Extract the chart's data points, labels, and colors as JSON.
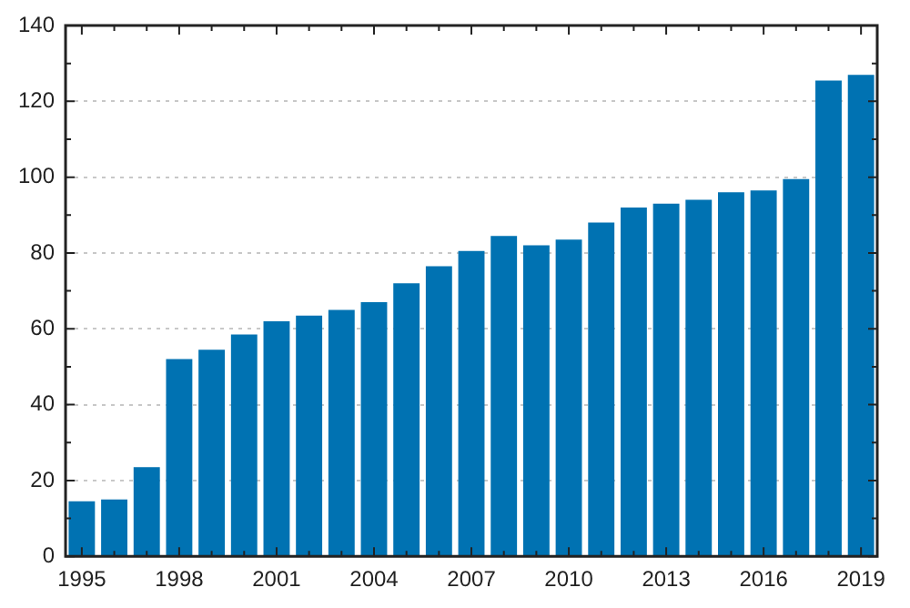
{
  "chart_data": {
    "type": "bar",
    "categories": [
      "1995",
      null,
      null,
      "1998",
      null,
      null,
      "2001",
      null,
      null,
      "2004",
      null,
      null,
      "2007",
      null,
      null,
      "2010",
      null,
      null,
      "2013",
      null,
      null,
      "2016",
      null,
      null,
      "2019"
    ],
    "values": [
      14.5,
      15,
      23.5,
      52,
      54.5,
      58.5,
      62,
      63.5,
      65,
      67,
      72,
      76.5,
      80.5,
      84.5,
      82,
      83.5,
      88,
      92,
      93,
      94,
      96,
      96.5,
      99.5,
      125.5,
      127
    ],
    "color": "#0072b2",
    "ylim": [
      0,
      140
    ],
    "yticks": [
      0,
      {
        "value": 10,
        "label": null
      },
      20,
      {
        "value": 30,
        "label": null
      },
      40,
      {
        "value": 50,
        "label": null
      },
      60,
      {
        "value": 70,
        "label": null
      },
      80,
      {
        "value": 90,
        "label": null
      },
      100,
      {
        "value": 110,
        "label": null
      },
      120,
      {
        "value": 130,
        "label": null
      },
      140
    ],
    "grid": "y",
    "legend": false
  }
}
